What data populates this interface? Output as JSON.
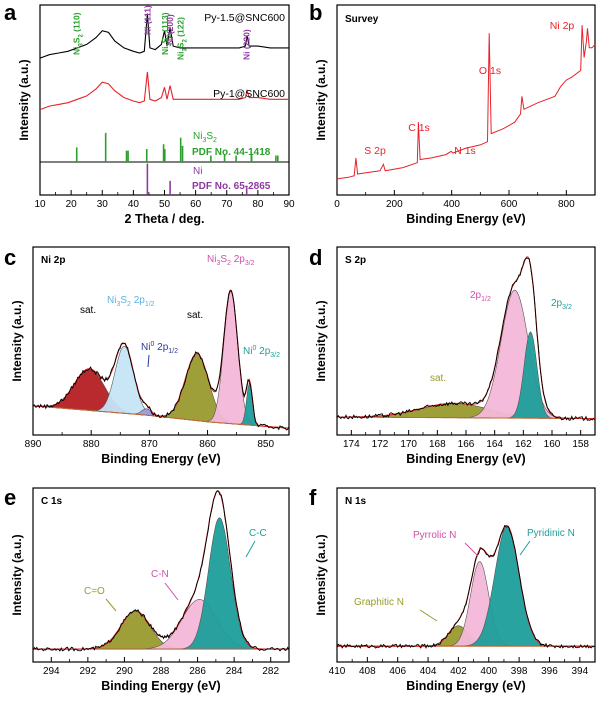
{
  "chart_data": [
    {
      "panel": "a",
      "type": "line",
      "xlabel": "2 Theta / deg.",
      "ylabel": "Intensity (a.u.)",
      "xlim": [
        10,
        90
      ],
      "xticks": [
        10,
        20,
        30,
        40,
        50,
        60,
        70,
        80,
        90
      ],
      "series": [
        {
          "name": "Py-1.5@SNC600",
          "color": "#000000",
          "points": [
            [
              10,
              0.74
            ],
            [
              13,
              0.76
            ],
            [
              16,
              0.77
            ],
            [
              19,
              0.78
            ],
            [
              22,
              0.8
            ],
            [
              25,
              0.82
            ],
            [
              28,
              0.86
            ],
            [
              30,
              0.9
            ],
            [
              32,
              0.89
            ],
            [
              34,
              0.84
            ],
            [
              37,
              0.8
            ],
            [
              40,
              0.78
            ],
            [
              42,
              0.77
            ],
            [
              43.5,
              0.78
            ],
            [
              44.5,
              1.0
            ],
            [
              45.3,
              0.8
            ],
            [
              47,
              0.79
            ],
            [
              49,
              0.82
            ],
            [
              50,
              0.9
            ],
            [
              50.8,
              0.81
            ],
            [
              51.8,
              0.92
            ],
            [
              52.8,
              0.81
            ],
            [
              55,
              0.8
            ],
            [
              58,
              0.8
            ],
            [
              62,
              0.8
            ],
            [
              66,
              0.8
            ],
            [
              70,
              0.8
            ],
            [
              74,
              0.8
            ],
            [
              76,
              0.81
            ],
            [
              76.5,
              0.87
            ],
            [
              77.2,
              0.81
            ],
            [
              80,
              0.81
            ],
            [
              84,
              0.8
            ],
            [
              88,
              0.8
            ],
            [
              90,
              0.8
            ]
          ]
        },
        {
          "name": "Py-1@SNC600",
          "color": "#e8222a",
          "points": [
            [
              10,
              0.44
            ],
            [
              13,
              0.46
            ],
            [
              16,
              0.47
            ],
            [
              19,
              0.48
            ],
            [
              22,
              0.5
            ],
            [
              25,
              0.52
            ],
            [
              28,
              0.56
            ],
            [
              30,
              0.6
            ],
            [
              32,
              0.59
            ],
            [
              34,
              0.55
            ],
            [
              37,
              0.51
            ],
            [
              40,
              0.49
            ],
            [
              42,
              0.48
            ],
            [
              43.5,
              0.49
            ],
            [
              44.5,
              0.66
            ],
            [
              45.3,
              0.5
            ],
            [
              47,
              0.49
            ],
            [
              49,
              0.51
            ],
            [
              50,
              0.57
            ],
            [
              50.8,
              0.5
            ],
            [
              51.8,
              0.58
            ],
            [
              52.8,
              0.5
            ],
            [
              55,
              0.5
            ],
            [
              58,
              0.5
            ],
            [
              62,
              0.5
            ],
            [
              66,
              0.5
            ],
            [
              70,
              0.5
            ],
            [
              74,
              0.5
            ],
            [
              76,
              0.51
            ],
            [
              76.5,
              0.55
            ],
            [
              77.2,
              0.51
            ],
            [
              80,
              0.51
            ],
            [
              84,
              0.5
            ],
            [
              88,
              0.5
            ],
            [
              90,
              0.5
            ]
          ]
        }
      ],
      "reference_patterns": [
        {
          "name": "Ni3S2",
          "pdf": "PDF No. 44-1418",
          "color": "#2ca02c",
          "sticks": [
            [
              21.8,
              0.45
            ],
            [
              31.1,
              0.9
            ],
            [
              37.8,
              0.35
            ],
            [
              38.3,
              0.35
            ],
            [
              44.3,
              0.4
            ],
            [
              49.7,
              0.55
            ],
            [
              50.1,
              0.4
            ],
            [
              55.2,
              0.75
            ],
            [
              55.8,
              0.5
            ],
            [
              64.9,
              0.2
            ],
            [
              69.3,
              0.25
            ],
            [
              73.0,
              0.2
            ],
            [
              77.9,
              0.3
            ],
            [
              78.0,
              0.2
            ],
            [
              85.8,
              0.2
            ],
            [
              86.4,
              0.2
            ]
          ]
        },
        {
          "name": "Ni",
          "pdf": "PDF No. 65-2865",
          "color": "#8e3ba0",
          "sticks": [
            [
              44.5,
              1.0
            ],
            [
              51.8,
              0.45
            ],
            [
              76.4,
              0.25
            ]
          ]
        }
      ],
      "annotations": [
        {
          "label": "Ni3S2 (110)",
          "x": 21.8
        },
        {
          "label": "Ni (111)",
          "x": 44.5
        },
        {
          "label": "Ni3S2 (113)",
          "x": 50.1
        },
        {
          "label": "Ni (200)",
          "x": 51.8
        },
        {
          "label": "Ni3S2 (122)",
          "x": 55.2
        },
        {
          "label": "Ni (220)",
          "x": 76.4
        }
      ]
    },
    {
      "panel": "b",
      "type": "line",
      "title": "Survey",
      "xlabel": "Binding Energy (eV)",
      "ylabel": "Intensity (a.u.)",
      "xlim": [
        0,
        900
      ],
      "xticks": [
        0,
        200,
        400,
        600,
        800
      ],
      "series": [
        {
          "name": "",
          "color": "#e8222a",
          "points": [
            [
              0,
              0.05
            ],
            [
              40,
              0.06
            ],
            [
              60,
              0.07
            ],
            [
              66,
              0.18
            ],
            [
              72,
              0.08
            ],
            [
              110,
              0.09
            ],
            [
              150,
              0.1
            ],
            [
              162,
              0.14
            ],
            [
              168,
              0.1
            ],
            [
              230,
              0.12
            ],
            [
              280,
              0.15
            ],
            [
              284,
              0.4
            ],
            [
              290,
              0.17
            ],
            [
              330,
              0.18
            ],
            [
              380,
              0.2
            ],
            [
              398,
              0.22
            ],
            [
              405,
              0.21
            ],
            [
              450,
              0.24
            ],
            [
              500,
              0.26
            ],
            [
              525,
              0.28
            ],
            [
              531,
              0.95
            ],
            [
              538,
              0.33
            ],
            [
              580,
              0.36
            ],
            [
              620,
              0.4
            ],
            [
              640,
              0.45
            ],
            [
              645,
              0.56
            ],
            [
              652,
              0.48
            ],
            [
              700,
              0.52
            ],
            [
              760,
              0.56
            ],
            [
              780,
              0.62
            ],
            [
              800,
              0.66
            ],
            [
              820,
              0.68
            ],
            [
              850,
              0.72
            ],
            [
              855,
              1.0
            ],
            [
              862,
              0.8
            ],
            [
              870,
              0.9
            ],
            [
              874,
              0.98
            ],
            [
              880,
              0.86
            ],
            [
              890,
              0.86
            ],
            [
              900,
              0.88
            ]
          ]
        }
      ],
      "annotations": [
        {
          "label": "S 2p",
          "x": 163
        },
        {
          "label": "C 1s",
          "x": 284
        },
        {
          "label": "N 1s",
          "x": 398
        },
        {
          "label": "O 1s",
          "x": 531
        },
        {
          "label": "Ni 2p",
          "x": 855
        }
      ]
    },
    {
      "panel": "c",
      "type": "area",
      "title": "Ni 2p",
      "xlabel": "Binding Energy (eV)",
      "ylabel": "Intensity (a.u.)",
      "xlim": [
        890,
        846
      ],
      "reversed_x": true,
      "xticks": [
        890,
        880,
        870,
        860,
        850
      ],
      "baseline": [
        [
          890,
          0.12
        ],
        [
          870,
          0.06
        ],
        [
          860,
          0.02
        ],
        [
          846,
          -0.02
        ]
      ],
      "components": [
        {
          "name": "sat.",
          "center": 880.3,
          "height": 0.26,
          "width": 2.6,
          "color": "#b51f24"
        },
        {
          "name": "Ni3S2 2p1/2",
          "center": 874.3,
          "height": 0.42,
          "width": 1.6,
          "color": "#c5e5f5"
        },
        {
          "name": "Ni0 2p1/2",
          "center": 870.5,
          "height": 0.04,
          "width": 0.8,
          "color": "#9b9bdc"
        },
        {
          "name": "sat.",
          "center": 861.8,
          "height": 0.42,
          "width": 2.0,
          "color": "#9a9a2e"
        },
        {
          "name": "Ni3S2 2p3/2",
          "center": 856.0,
          "height": 0.83,
          "width": 1.2,
          "color": "#f3b8d8"
        },
        {
          "name": "Ni0 2p3/2",
          "center": 852.8,
          "height": 0.26,
          "width": 0.5,
          "color": "#1e9e9a"
        }
      ]
    },
    {
      "panel": "d",
      "type": "area",
      "title": "S 2p",
      "xlabel": "Binding Energy (eV)",
      "ylabel": "Intensity (a.u.)",
      "xlim": [
        175,
        157
      ],
      "reversed_x": true,
      "xticks": [
        174,
        172,
        170,
        168,
        166,
        164,
        162,
        160,
        158
      ],
      "baseline": [
        [
          175,
          0.05
        ],
        [
          157,
          0.04
        ]
      ],
      "components": [
        {
          "name": "sat.",
          "center": 166.8,
          "height": 0.09,
          "width": 2.4,
          "color": "#9a9a2e"
        },
        {
          "name": "2p1/2",
          "center": 162.6,
          "height": 0.8,
          "width": 0.95,
          "color": "#f3b8d8"
        },
        {
          "name": "2p3/2",
          "center": 161.5,
          "height": 0.54,
          "width": 0.45,
          "color": "#1e9e9a"
        }
      ]
    },
    {
      "panel": "e",
      "type": "area",
      "title": "C 1s",
      "xlabel": "Binding Energy (eV)",
      "ylabel": "Intensity (a.u.)",
      "xlim": [
        295,
        281
      ],
      "reversed_x": true,
      "xticks": [
        294,
        292,
        290,
        288,
        286,
        284,
        282
      ],
      "baseline": [
        [
          295,
          0.02
        ],
        [
          281,
          0.02
        ]
      ],
      "components": [
        {
          "name": "C=O",
          "center": 289.4,
          "height": 0.26,
          "width": 0.8,
          "color": "#9a9a2e"
        },
        {
          "name": "C-N",
          "center": 285.9,
          "height": 0.34,
          "width": 0.95,
          "color": "#f3b8d8"
        },
        {
          "name": "C-C",
          "center": 284.8,
          "height": 0.9,
          "width": 0.6,
          "color": "#1e9e9a"
        }
      ]
    },
    {
      "panel": "f",
      "type": "area",
      "title": "N 1s",
      "xlabel": "Binding Energy (eV)",
      "ylabel": "Intensity (a.u.)",
      "xlim": [
        410,
        393
      ],
      "reversed_x": true,
      "xticks": [
        410,
        408,
        406,
        404,
        402,
        400,
        398,
        396,
        394
      ],
      "baseline": [
        [
          410,
          0.04
        ],
        [
          393,
          0.04
        ]
      ],
      "components": [
        {
          "name": "Graphitic N",
          "center": 402.0,
          "height": 0.14,
          "width": 0.65,
          "color": "#9a9a2e"
        },
        {
          "name": "Pyrrolic N",
          "center": 400.6,
          "height": 0.58,
          "width": 0.6,
          "color": "#f3b8d8"
        },
        {
          "name": "Pyridinic N",
          "center": 398.8,
          "height": 0.82,
          "width": 0.8,
          "color": "#1e9e9a"
        }
      ]
    }
  ]
}
